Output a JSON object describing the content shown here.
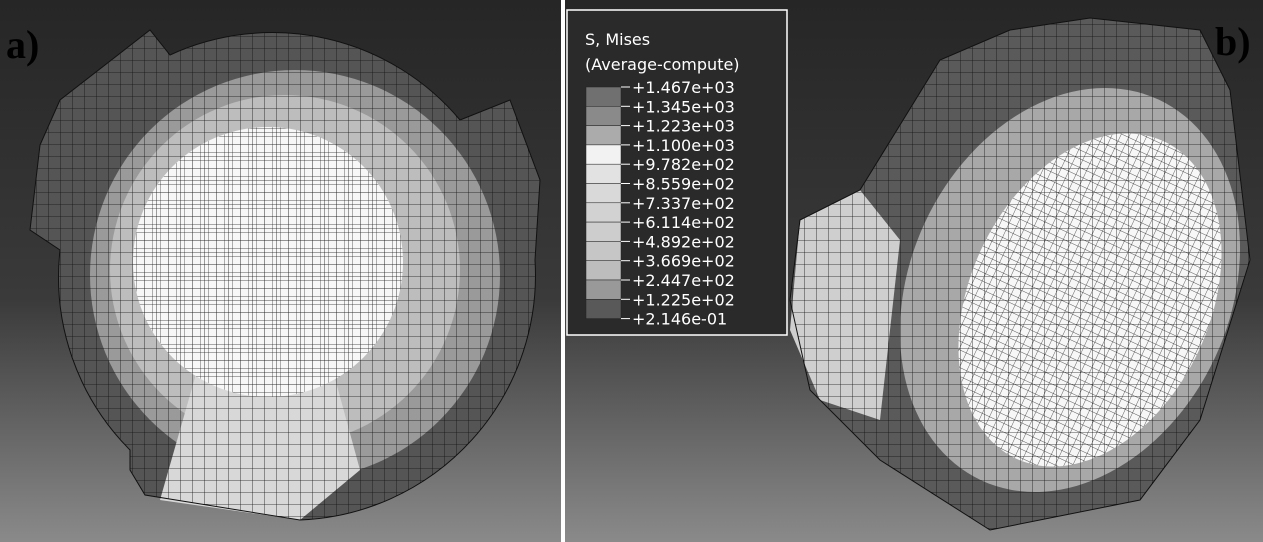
{
  "panels": {
    "left_label": "a)",
    "right_label": "b)"
  },
  "legend": {
    "title": "S, Mises",
    "subtitle": "(Average-compute)",
    "labels": [
      "+1.467e+03",
      "+1.345e+03",
      "+1.223e+03",
      "+1.100e+03",
      "+9.782e+02",
      "+8.559e+02",
      "+7.337e+02",
      "+6.114e+02",
      "+4.892e+02",
      "+3.669e+02",
      "+2.447e+02",
      "+1.225e+02",
      "+2.146e-01"
    ]
  }
}
